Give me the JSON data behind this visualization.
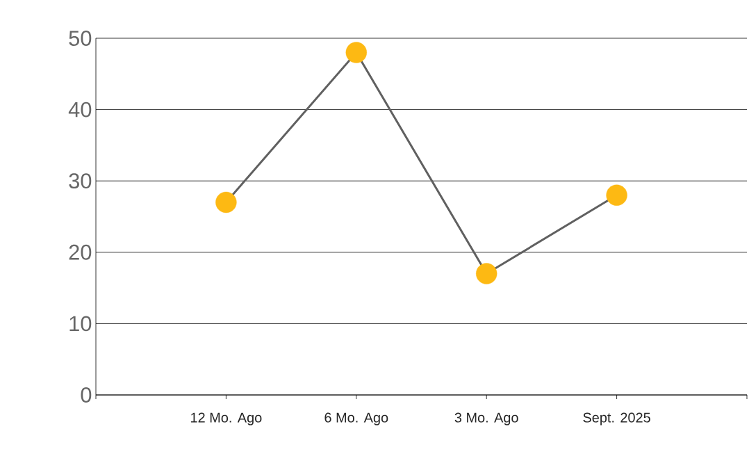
{
  "chart_data": {
    "type": "line",
    "categories": [
      "12 Mo. Ago",
      "6 Mo. Ago",
      "3 Mo. Ago",
      "Sept. 2025"
    ],
    "values": [
      27,
      48,
      17,
      28
    ],
    "color": "#606060",
    "colors": [
      "#fdb913",
      "#fdb913",
      "#fdb913",
      "#fdb913"
    ],
    "marker": "circle",
    "line_style": "solid",
    "grid": "y",
    "ylim": [
      0,
      50
    ],
    "yticks": [
      0,
      10,
      20,
      30,
      40,
      50
    ]
  }
}
